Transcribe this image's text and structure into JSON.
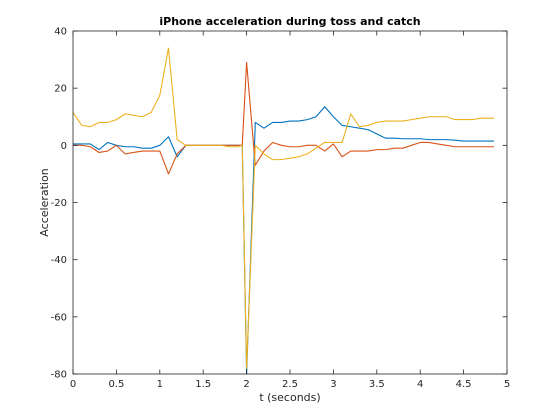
{
  "chart_data": {
    "type": "line",
    "title": "iPhone acceleration during toss and catch",
    "xlabel": "t (seconds)",
    "ylabel": "Acceleration",
    "xlim": [
      0,
      5
    ],
    "ylim": [
      -80,
      40
    ],
    "xticks": [
      0,
      0.5,
      1,
      1.5,
      2,
      2.5,
      3,
      3.5,
      4,
      4.5,
      5
    ],
    "xtick_labels": [
      "0",
      "0.5",
      "1",
      "1.5",
      "2",
      "2.5",
      "3",
      "3.5",
      "4",
      "4.5",
      "5"
    ],
    "yticks": [
      -80,
      -60,
      -40,
      -20,
      0,
      20,
      40
    ],
    "ytick_labels": [
      "-80",
      "-60",
      "-40",
      "-20",
      "0",
      "20",
      "40"
    ],
    "grid": false,
    "legend": "none",
    "series": [
      {
        "color": "#0072BD",
        "x": [
          0,
          0.1,
          0.2,
          0.3,
          0.4,
          0.5,
          0.6,
          0.7,
          0.8,
          0.9,
          1.0,
          1.1,
          1.2,
          1.3,
          1.4,
          1.5,
          1.6,
          1.7,
          1.8,
          1.9,
          1.95,
          2.0,
          2.1,
          2.2,
          2.3,
          2.4,
          2.5,
          2.6,
          2.7,
          2.8,
          2.9,
          3.0,
          3.1,
          3.2,
          3.3,
          3.4,
          3.5,
          3.6,
          3.7,
          3.8,
          3.9,
          4.0,
          4.1,
          4.2,
          4.3,
          4.4,
          4.5,
          4.6,
          4.7,
          4.8,
          4.85
        ],
        "y": [
          0.5,
          0.5,
          0.5,
          -1.5,
          1,
          0,
          -0.5,
          -0.5,
          -1,
          -1,
          0,
          3,
          -4,
          0,
          0,
          0,
          0,
          0,
          0,
          0,
          0,
          -80,
          8,
          6,
          8,
          8,
          8.5,
          8.5,
          9,
          10,
          13.5,
          10,
          7,
          6.5,
          6,
          5.5,
          4,
          2.5,
          2.5,
          2.3,
          2.3,
          2.3,
          2,
          2,
          2,
          1.8,
          1.5,
          1.5,
          1.5,
          1.5,
          1.5
        ]
      },
      {
        "color": "#D95319",
        "x": [
          0,
          0.1,
          0.2,
          0.3,
          0.4,
          0.5,
          0.6,
          0.7,
          0.8,
          0.9,
          1.0,
          1.1,
          1.2,
          1.3,
          1.4,
          1.5,
          1.6,
          1.7,
          1.8,
          1.9,
          1.95,
          2.0,
          2.1,
          2.2,
          2.3,
          2.4,
          2.5,
          2.6,
          2.7,
          2.8,
          2.9,
          3.0,
          3.1,
          3.2,
          3.3,
          3.4,
          3.5,
          3.6,
          3.7,
          3.8,
          3.9,
          4.0,
          4.1,
          4.2,
          4.3,
          4.4,
          4.5,
          4.6,
          4.7,
          4.8,
          4.85
        ],
        "y": [
          0,
          0,
          -0.5,
          -2.5,
          -2,
          0,
          -3,
          -2.5,
          -2,
          -2,
          -2,
          -10,
          -3,
          0,
          0,
          0,
          0,
          0,
          0,
          0,
          0,
          29,
          -7,
          -2,
          1,
          0,
          -0.5,
          -0.5,
          0,
          0,
          -2,
          0.5,
          -4,
          -2,
          -2,
          -2,
          -1.5,
          -1.5,
          -1,
          -1,
          0,
          1,
          1,
          0.5,
          0,
          -0.5,
          -0.5,
          -0.5,
          -0.5,
          -0.5,
          -0.5
        ]
      },
      {
        "color": "#EDB120",
        "x": [
          0,
          0.1,
          0.2,
          0.3,
          0.4,
          0.5,
          0.6,
          0.7,
          0.8,
          0.9,
          1.0,
          1.1,
          1.2,
          1.3,
          1.4,
          1.5,
          1.6,
          1.7,
          1.8,
          1.9,
          1.95,
          2.0,
          2.1,
          2.2,
          2.3,
          2.4,
          2.5,
          2.6,
          2.7,
          2.8,
          2.9,
          3.0,
          3.1,
          3.2,
          3.3,
          3.4,
          3.5,
          3.6,
          3.7,
          3.8,
          3.9,
          4.0,
          4.1,
          4.2,
          4.3,
          4.4,
          4.5,
          4.6,
          4.7,
          4.8,
          4.85
        ],
        "y": [
          11.5,
          7,
          6.5,
          8,
          8,
          9,
          11,
          10.5,
          10,
          11.5,
          17.5,
          34,
          2,
          0,
          0,
          0,
          0,
          0,
          -0.5,
          -0.5,
          0,
          -78,
          0,
          -3,
          -5,
          -5,
          -4.5,
          -4,
          -3,
          -1,
          1,
          1,
          1,
          11,
          6.5,
          7,
          8,
          8.5,
          8.5,
          8.5,
          9,
          9.5,
          10,
          10,
          10,
          9,
          9,
          9,
          9.5,
          9.5,
          9.5
        ]
      }
    ]
  }
}
